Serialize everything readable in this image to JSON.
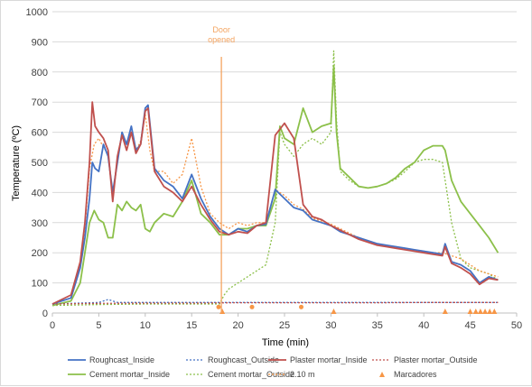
{
  "chart_data": {
    "type": "line",
    "xlabel": "Time (min)",
    "ylabel": "Temperature (ºC)",
    "xlim": [
      0,
      50
    ],
    "ylim": [
      0,
      1000
    ],
    "xticks": [
      0,
      5,
      10,
      15,
      20,
      25,
      30,
      35,
      40,
      45,
      50
    ],
    "yticks": [
      0,
      100,
      200,
      300,
      400,
      500,
      600,
      700,
      800,
      900,
      1000
    ],
    "grid": "horizontal",
    "legend_position": "bottom",
    "annotations": [
      {
        "text_lines": [
          "Door",
          "opened"
        ],
        "x": 18.2,
        "color": "#f4a460"
      }
    ],
    "series": [
      {
        "name": "Roughcast_Inside",
        "color": "#4472c4",
        "style": "solid",
        "x": [
          0,
          2,
          3,
          3.5,
          4,
          4.3,
          4.6,
          5,
          5.5,
          6,
          6.5,
          7,
          7.5,
          8,
          8.5,
          9,
          9.5,
          10,
          10.3,
          11,
          12,
          13,
          14,
          15,
          16,
          17,
          18,
          19,
          20,
          21,
          22,
          23,
          24,
          25,
          26,
          27,
          28,
          29,
          30,
          31,
          32,
          33,
          34,
          35,
          36,
          37,
          38,
          39,
          40,
          41,
          42,
          42.3,
          43,
          44,
          45,
          46,
          47,
          48
        ],
        "y": [
          30,
          50,
          150,
          250,
          380,
          500,
          480,
          470,
          560,
          520,
          400,
          500,
          600,
          560,
          620,
          540,
          560,
          680,
          690,
          480,
          440,
          420,
          380,
          460,
          380,
          320,
          280,
          260,
          280,
          270,
          290,
          295,
          410,
          380,
          350,
          340,
          310,
          300,
          290,
          270,
          260,
          250,
          240,
          230,
          225,
          220,
          215,
          210,
          205,
          200,
          195,
          230,
          170,
          160,
          140,
          100,
          120,
          110
        ]
      },
      {
        "name": "Roughcast_Outside",
        "color": "#4472c4",
        "style": "dotted",
        "x": [
          0,
          5,
          6,
          7,
          10,
          15,
          20,
          25,
          30,
          35,
          40,
          45,
          48
        ],
        "y": [
          30,
          35,
          45,
          35,
          35,
          35,
          35,
          35,
          35,
          35,
          35,
          35,
          35
        ]
      },
      {
        "name": "Plaster mortar_Inside",
        "color": "#c0504d",
        "style": "solid",
        "x": [
          0,
          2,
          3,
          3.5,
          4,
          4.3,
          4.6,
          5,
          5.5,
          6,
          6.5,
          7,
          7.5,
          8,
          8.5,
          9,
          9.5,
          10,
          10.3,
          11,
          12,
          13,
          14,
          15,
          16,
          17,
          18,
          19,
          20,
          21,
          22,
          23,
          24,
          25,
          26,
          27,
          28,
          29,
          30,
          31,
          32,
          33,
          34,
          35,
          36,
          37,
          38,
          39,
          40,
          41,
          42,
          42.3,
          43,
          44,
          45,
          46,
          47,
          48
        ],
        "y": [
          30,
          60,
          170,
          300,
          500,
          700,
          620,
          600,
          580,
          540,
          370,
          520,
          590,
          540,
          600,
          530,
          560,
          670,
          680,
          470,
          420,
          400,
          370,
          420,
          360,
          310,
          270,
          260,
          270,
          265,
          290,
          300,
          590,
          630,
          580,
          360,
          320,
          310,
          290,
          275,
          260,
          245,
          235,
          225,
          220,
          215,
          210,
          205,
          200,
          195,
          190,
          220,
          165,
          150,
          130,
          95,
          115,
          110
        ]
      },
      {
        "name": "Plaster mortar_Outside",
        "color": "#c0504d",
        "style": "dotted",
        "x": [
          0,
          5,
          10,
          15,
          20,
          25,
          30,
          35,
          40,
          45,
          48
        ],
        "y": [
          30,
          32,
          33,
          33,
          34,
          34,
          34,
          34,
          35,
          35,
          35
        ]
      },
      {
        "name": "Cement mortar_Inside",
        "color": "#8cc04a",
        "style": "solid",
        "x": [
          0,
          2,
          3,
          3.5,
          4,
          4.5,
          5,
          5.5,
          6,
          6.5,
          7,
          7.5,
          8,
          8.5,
          9,
          9.5,
          10,
          10.5,
          11,
          12,
          13,
          14,
          15,
          16,
          17,
          18,
          19,
          20,
          21,
          22,
          23,
          24,
          24.5,
          25,
          26,
          27,
          28,
          29,
          30,
          30.3,
          30.6,
          31,
          32,
          33,
          34,
          35,
          36,
          37,
          38,
          39,
          40,
          41,
          42,
          42.3,
          43,
          44,
          45,
          46,
          47,
          48
        ],
        "y": [
          25,
          40,
          100,
          200,
          300,
          340,
          310,
          300,
          250,
          250,
          360,
          340,
          370,
          350,
          340,
          360,
          280,
          270,
          300,
          330,
          320,
          370,
          440,
          330,
          300,
          260,
          260,
          280,
          280,
          290,
          290,
          380,
          620,
          580,
          560,
          680,
          600,
          620,
          630,
          820,
          600,
          480,
          450,
          420,
          415,
          420,
          430,
          450,
          480,
          500,
          540,
          555,
          555,
          540,
          440,
          370,
          330,
          290,
          250,
          200
        ]
      },
      {
        "name": "Cement mortar_Outside",
        "color": "#8cc04a",
        "style": "dotted",
        "x": [
          0,
          5,
          10,
          15,
          18,
          18.5,
          19,
          20,
          21,
          22,
          23,
          24,
          24.5,
          25,
          26,
          27,
          28,
          29,
          30,
          30.3,
          30.6,
          31,
          32,
          33,
          34,
          35,
          36,
          37,
          38,
          39,
          40,
          41,
          42,
          43,
          44,
          45,
          46,
          47,
          48
        ],
        "y": [
          25,
          28,
          30,
          30,
          30,
          60,
          80,
          100,
          120,
          140,
          160,
          300,
          600,
          560,
          520,
          560,
          580,
          560,
          600,
          870,
          640,
          470,
          440,
          420,
          415,
          420,
          430,
          445,
          470,
          500,
          510,
          510,
          500,
          300,
          180,
          150,
          140,
          130,
          110
        ]
      },
      {
        "name": "2.10 m",
        "color": "#f79646",
        "style": "dotted",
        "x": [
          0,
          2,
          3,
          3.5,
          4,
          4.5,
          5,
          5.5,
          6,
          6.5,
          7,
          7.5,
          8,
          8.5,
          9,
          9.5,
          10,
          10.5,
          11,
          12,
          13,
          14,
          15,
          16,
          17,
          18,
          19,
          20,
          21,
          22,
          23,
          24,
          25,
          26,
          27,
          28,
          29,
          30,
          31,
          32,
          33,
          34,
          35,
          36,
          37,
          38,
          39,
          40,
          41,
          42,
          43,
          44,
          45,
          46,
          47,
          48
        ],
        "y": [
          30,
          50,
          160,
          280,
          480,
          560,
          580,
          550,
          530,
          380,
          520,
          590,
          560,
          600,
          540,
          570,
          660,
          540,
          470,
          470,
          430,
          460,
          580,
          420,
          330,
          300,
          280,
          300,
          290,
          300,
          300,
          410,
          390,
          360,
          345,
          315,
          305,
          295,
          280,
          265,
          250,
          240,
          230,
          225,
          220,
          215,
          210,
          205,
          200,
          200,
          190,
          180,
          160,
          140,
          130,
          120
        ]
      },
      {
        "name": "Marcadores",
        "color": "#f79646",
        "style": "markers",
        "x": [
          18.3,
          30.3,
          42.3,
          45,
          45.6,
          46.1,
          46.6,
          47.1,
          47.6
        ],
        "y": [
          0,
          0,
          0,
          0,
          0,
          0,
          0,
          0,
          0
        ]
      }
    ],
    "extra_points": {
      "color": "#f79646",
      "x": [
        17.9,
        21.5,
        26.8
      ],
      "y": [
        20,
        20,
        20
      ]
    }
  }
}
